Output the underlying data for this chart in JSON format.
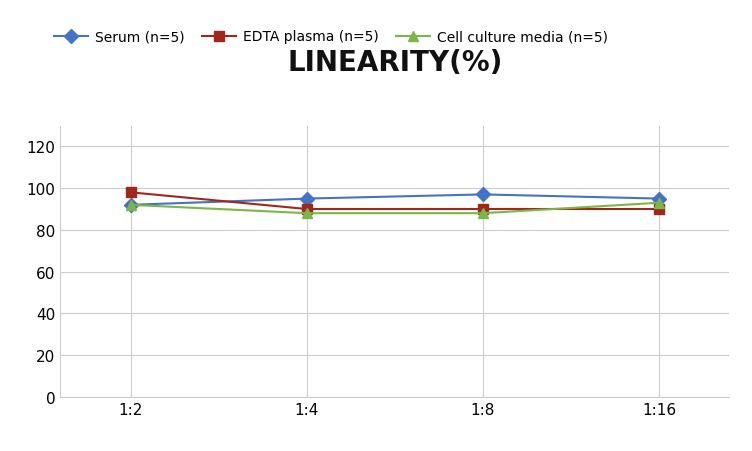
{
  "title": "LINEARITY(%)",
  "x_labels": [
    "1:2",
    "1:4",
    "1:8",
    "1:16"
  ],
  "x_positions": [
    0,
    1,
    2,
    3
  ],
  "series": [
    {
      "label": "Serum (n=5)",
      "values": [
        92,
        95,
        97,
        95
      ],
      "color": "#4472C4",
      "marker": "D",
      "markersize": 7,
      "linewidth": 1.5
    },
    {
      "label": "EDTA plasma (n=5)",
      "values": [
        98,
        90,
        90,
        90
      ],
      "color": "#A0281A",
      "marker": "s",
      "markersize": 7,
      "linewidth": 1.5
    },
    {
      "label": "Cell culture media (n=5)",
      "values": [
        92,
        88,
        88,
        93
      ],
      "color": "#7AB648",
      "marker": "^",
      "markersize": 7,
      "linewidth": 1.5
    }
  ],
  "ylim": [
    0,
    130
  ],
  "yticks": [
    0,
    20,
    40,
    60,
    80,
    100,
    120
  ],
  "background_color": "#ffffff",
  "grid_color": "#cccccc",
  "title_fontsize": 20,
  "title_fontweight": "bold",
  "legend_fontsize": 10,
  "tick_fontsize": 11
}
